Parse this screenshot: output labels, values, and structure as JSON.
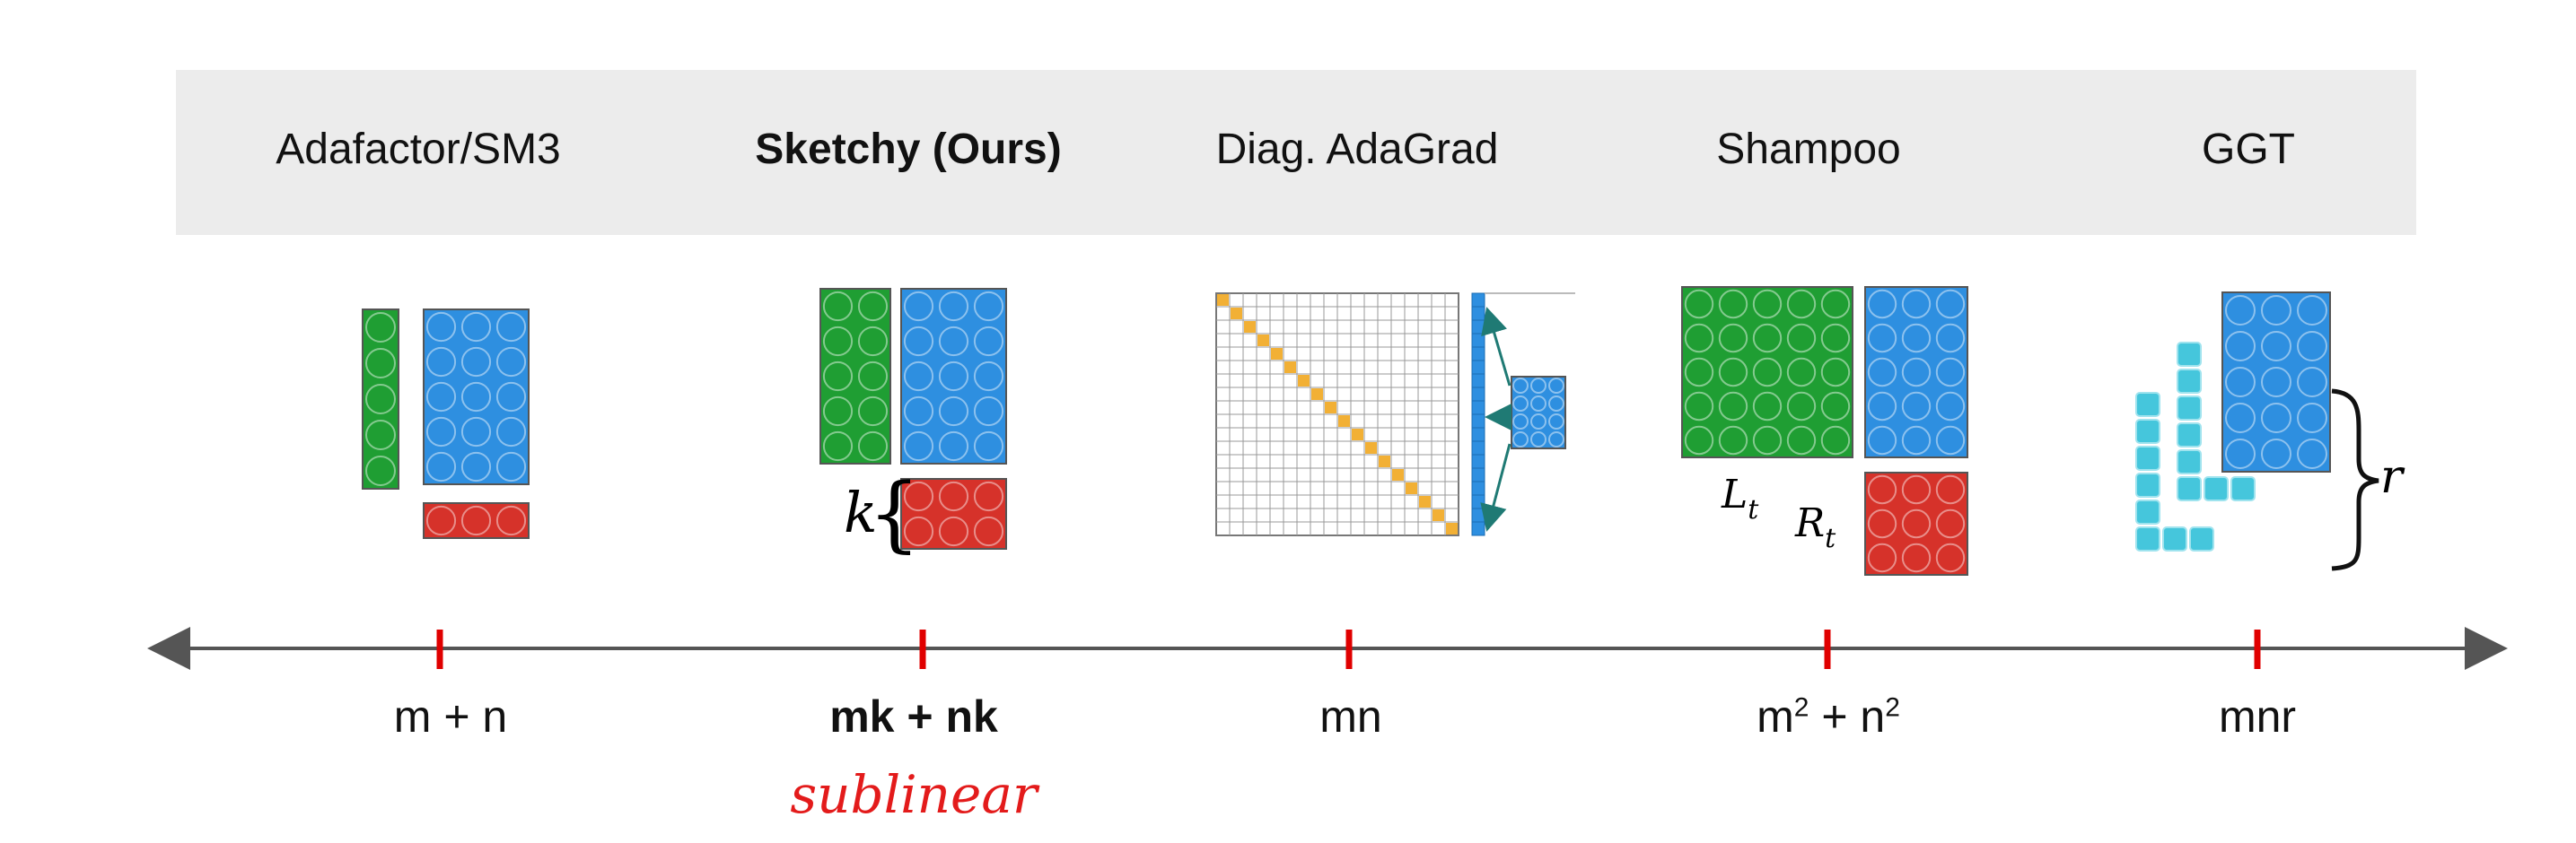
{
  "methods": [
    {
      "name": "Adafactor/SM3",
      "cost": "m + n"
    },
    {
      "name": "Sketchy (Ours)",
      "cost": "mk + nk"
    },
    {
      "name": "Diag. AdaGrad",
      "cost": "mn"
    },
    {
      "name": "Shampoo",
      "cost_base1": "m",
      "cost_exp1": "2",
      "cost_mid": " + n",
      "cost_exp2": "2"
    },
    {
      "name": "GGT",
      "cost": "mnr"
    }
  ],
  "annotations": {
    "k_label": "k",
    "lt_label": "L",
    "lt_sub": "t",
    "rt_label": "R",
    "rt_sub": "t",
    "r_label": "r",
    "sublinear_note": "sublinear"
  },
  "colors": {
    "green": "#1f9e33",
    "blue": "#2e8fe0",
    "red": "#d6322a",
    "cyan": "#45c6dc",
    "orange": "#f2b035",
    "tick": "#e00000",
    "axis": "#555555",
    "band": "#ececec"
  }
}
